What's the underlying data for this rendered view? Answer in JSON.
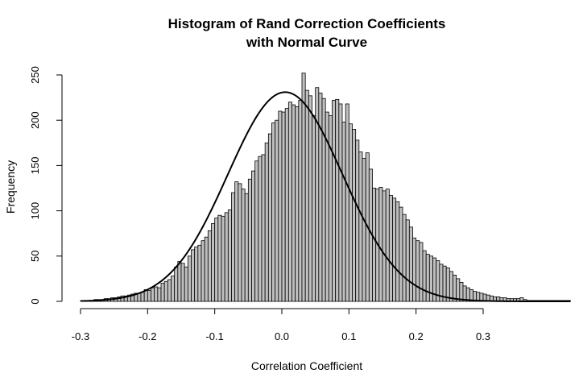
{
  "chart_data": {
    "type": "bar",
    "title": "Histogram of Rand Correction Coefficients",
    "subtitle": "with Normal Curve",
    "xlabel": "Correlation Coefficient",
    "ylabel": "Frequency",
    "xlim": [
      -0.3,
      0.37
    ],
    "ylim": [
      0,
      250
    ],
    "xticks": [
      "-0.3",
      "-0.2",
      "-0.1",
      "0.0",
      "0.1",
      "0.2",
      "0.3"
    ],
    "xtick_values": [
      -0.3,
      -0.2,
      -0.1,
      0.0,
      0.1,
      0.2,
      0.3
    ],
    "yticks": [
      "0",
      "50",
      "100",
      "150",
      "200",
      "250"
    ],
    "ytick_values": [
      0,
      50,
      100,
      150,
      200,
      250
    ],
    "bin_start": -0.3,
    "bin_width": 0.005,
    "frequencies": [
      1,
      1,
      1,
      1,
      2,
      2,
      2,
      3,
      3,
      4,
      4,
      5,
      6,
      6,
      7,
      8,
      9,
      9,
      10,
      13,
      12,
      15,
      16,
      15,
      20,
      22,
      24,
      28,
      38,
      44,
      42,
      38,
      50,
      57,
      60,
      62,
      67,
      71,
      78,
      86,
      92,
      95,
      94,
      98,
      101,
      120,
      132,
      130,
      124,
      119,
      135,
      144,
      155,
      160,
      162,
      175,
      185,
      197,
      200,
      210,
      209,
      213,
      220,
      217,
      215,
      222,
      252,
      233,
      227,
      205,
      236,
      230,
      224,
      209,
      205,
      222,
      223,
      218,
      198,
      218,
      196,
      190,
      178,
      165,
      158,
      164,
      146,
      125,
      124,
      126,
      122,
      124,
      117,
      114,
      110,
      104,
      96,
      90,
      82,
      70,
      67,
      65,
      56,
      52,
      50,
      48,
      45,
      41,
      39,
      37,
      33,
      29,
      25,
      21,
      17,
      15,
      13,
      11,
      10,
      9,
      8,
      7,
      6,
      5,
      5,
      4,
      4,
      3,
      3,
      3,
      3,
      4,
      2,
      1,
      1,
      1,
      1,
      1,
      1,
      1,
      1,
      1,
      1,
      1,
      1,
      1
    ],
    "normal_curve": {
      "mean": 0.005,
      "sd": 0.0855,
      "peak": 231
    },
    "grid": false,
    "legend": "none"
  }
}
